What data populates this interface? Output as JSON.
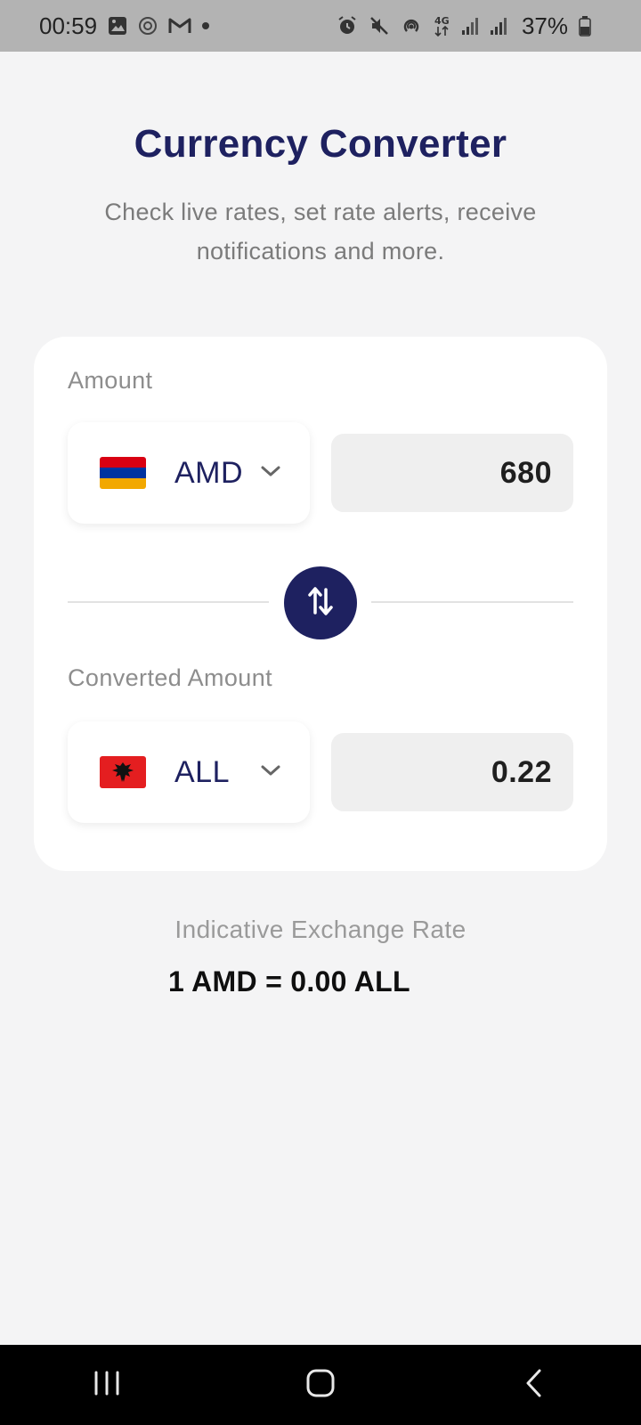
{
  "status_bar": {
    "time": "00:59",
    "battery_percent": "37%",
    "left_icons": [
      "gallery-icon",
      "settings-app-icon",
      "gmail-icon",
      "notification-dot-icon"
    ],
    "right_icons": [
      "alarm-icon",
      "mute-icon",
      "hotspot-icon",
      "network-4g-icon",
      "signal-icon",
      "signal-icon",
      "battery-icon"
    ]
  },
  "header": {
    "title": "Currency Converter",
    "subtitle": "Check live rates, set rate alerts, receive notifications and more."
  },
  "converter": {
    "amount_label": "Amount",
    "from": {
      "code": "AMD",
      "flag": "armenia-flag-icon",
      "value": "680"
    },
    "converted_label": "Converted Amount",
    "to": {
      "code": "ALL",
      "flag": "albania-flag-icon",
      "value": "0.22"
    },
    "swap_icon": "swap-vertical-icon"
  },
  "rate": {
    "label": "Indicative Exchange Rate",
    "value": "1 AMD = 0.00 ALL"
  },
  "colors": {
    "primary": "#1e2160",
    "background": "#f4f4f5",
    "card": "#ffffff",
    "field": "#efefef"
  },
  "nav_bar": {
    "buttons": [
      "recent-apps-icon",
      "home-icon",
      "back-icon"
    ]
  }
}
